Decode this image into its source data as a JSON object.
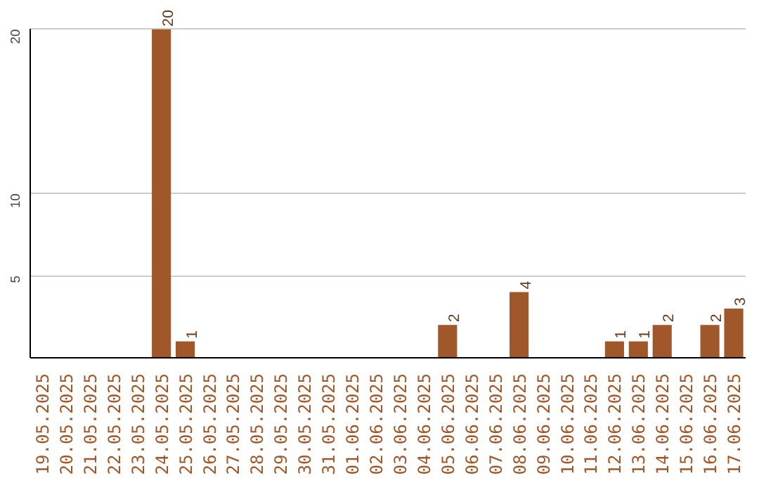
{
  "chart_data": {
    "type": "bar",
    "categories": [
      "19.05.2025",
      "20.05.2025",
      "21.05.2025",
      "22.05.2025",
      "23.05.2025",
      "24.05.2025",
      "25.05.2025",
      "26.05.2025",
      "27.05.2025",
      "28.05.2025",
      "29.05.2025",
      "30.05.2025",
      "31.05.2025",
      "01.06.2025",
      "02.06.2025",
      "03.06.2025",
      "04.06.2025",
      "05.06.2025",
      "06.06.2025",
      "07.06.2025",
      "08.06.2025",
      "09.06.2025",
      "10.06.2025",
      "11.06.2025",
      "12.06.2025",
      "13.06.2025",
      "14.06.2025",
      "15.06.2025",
      "16.06.2025",
      "17.06.2025"
    ],
    "values": [
      0,
      0,
      0,
      0,
      0,
      20,
      1,
      0,
      0,
      0,
      0,
      0,
      0,
      0,
      0,
      0,
      0,
      2,
      0,
      0,
      4,
      0,
      0,
      0,
      1,
      1,
      2,
      0,
      2,
      3
    ],
    "color": "#a0582a",
    "ylim": [
      0,
      20
    ],
    "yticks": [
      5,
      10,
      20
    ],
    "grid": "y",
    "value_labels": [
      null,
      null,
      null,
      null,
      null,
      "20",
      "1",
      null,
      null,
      null,
      null,
      null,
      null,
      null,
      null,
      null,
      null,
      "2",
      null,
      null,
      "4",
      null,
      null,
      null,
      "1",
      "1",
      "2",
      null,
      "2",
      "3"
    ]
  }
}
